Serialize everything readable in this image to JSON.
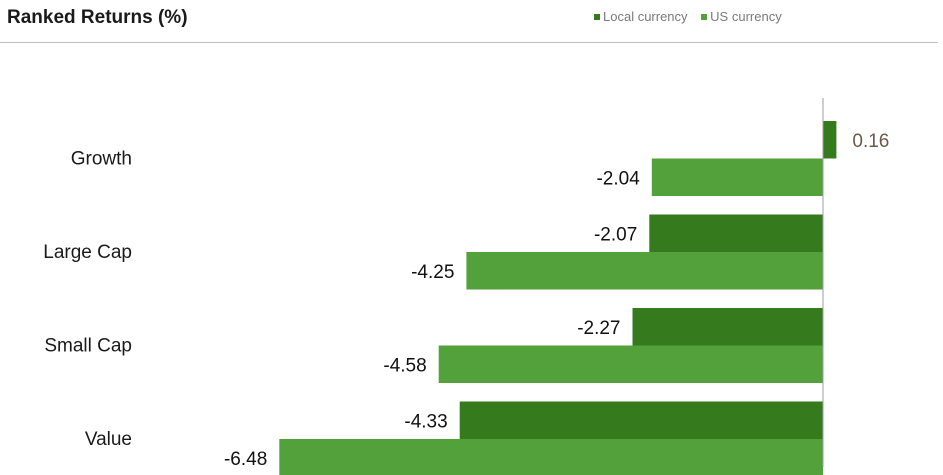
{
  "chart_data": {
    "type": "bar",
    "orientation": "horizontal",
    "title": "Ranked Returns (%)",
    "categories": [
      "Growth",
      "Large Cap",
      "Small Cap",
      "Value"
    ],
    "series": [
      {
        "name": "Local currency",
        "values": [
          0.16,
          -2.07,
          -2.27,
          -4.33
        ],
        "color": "#367a1e"
      },
      {
        "name": "US currency",
        "values": [
          -2.04,
          -4.25,
          -4.58,
          -6.48
        ],
        "color": "#53a13a"
      }
    ],
    "legend_position": "top-right",
    "grid": false,
    "xlim": [
      -6.48,
      0.16
    ],
    "label_colors": {
      "positive": "#6b5a4a",
      "negative": "#111111"
    }
  }
}
